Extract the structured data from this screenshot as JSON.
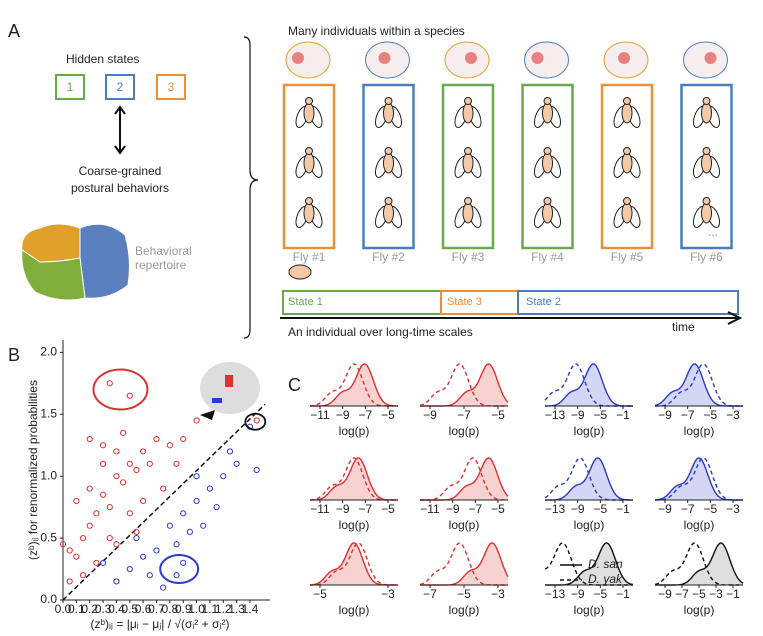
{
  "panel_a": {
    "label": "A",
    "hidden_states_title": "Hidden states",
    "states": [
      "1",
      "2",
      "3"
    ],
    "behaviors": [
      "Coarse-grained",
      "postural behaviors"
    ],
    "repertoire": [
      "Behavioral",
      "repertoire"
    ],
    "species_title": "Many individuals within a species",
    "flies": [
      "Fly #1",
      "Fly #2",
      "Fly #3",
      "Fly #4",
      "Fly #5",
      "Fly #6"
    ],
    "more": "...",
    "timeline": [
      "State 1",
      "State 3",
      "State 2"
    ],
    "individual_title": "An individual over long-time scales",
    "time_label": "time"
  },
  "chart_data": {
    "type": "scatter",
    "label": "B",
    "ylabel": "(zᵇ)ᵢⱼ for renormalized probabilities",
    "xlabel": "(zᵇ)ᵢⱼ = |μᵢ − μⱼ| / √(σᵢ² + σⱼ²)",
    "xlim": [
      0,
      1.55
    ],
    "ylim": [
      0,
      2.1
    ],
    "xticks": [
      {
        "value": 0,
        "label": "0.0"
      },
      {
        "value": 0.1,
        "label": "0.1"
      },
      {
        "value": 0.2,
        "label": "0.2"
      },
      {
        "value": 0.3,
        "label": "0.3"
      },
      {
        "value": 0.4,
        "label": "0.4"
      },
      {
        "value": 0.5,
        "label": "0.5"
      },
      {
        "value": 0.6,
        "label": "0.6"
      },
      {
        "value": 0.7,
        "label": "0.7"
      },
      {
        "value": 0.8,
        "label": "0.8"
      },
      {
        "value": 0.9,
        "label": "0.9"
      },
      {
        "value": 1,
        "label": "1.0"
      },
      {
        "value": 1.1,
        "label": "1.1"
      },
      {
        "value": 1.2,
        "label": "1.2"
      },
      {
        "value": 1.3,
        "label": "1.3"
      },
      {
        "value": 1.4,
        "label": "1.4"
      }
    ],
    "yticks": [
      {
        "value": 0,
        "label": "0.0"
      },
      {
        "value": 0.5,
        "label": "0.5"
      },
      {
        "value": 1,
        "label": "1.0"
      },
      {
        "value": 1.5,
        "label": "1.5"
      },
      {
        "value": 2,
        "label": "2.0"
      }
    ],
    "series": [
      {
        "color": "#e03030",
        "x": [
          0.35,
          0.5,
          0.0,
          0.05,
          0.1,
          0.15,
          0.2,
          0.25,
          0.1,
          0.2,
          0.3,
          0.35,
          0.4,
          0.45,
          0.5,
          0.55,
          0.6,
          0.3,
          0.4,
          0.2,
          0.45,
          0.7,
          0.65,
          0.8,
          0.9,
          1.0,
          0.75,
          0.6,
          0.5,
          0.15,
          0.05,
          0.25,
          0.35,
          1.45,
          0.85,
          0.3,
          0.55,
          0.4
        ],
        "values": [
          1.75,
          1.65,
          0.45,
          0.4,
          0.35,
          0.5,
          0.6,
          0.7,
          0.8,
          0.9,
          0.85,
          0.75,
          1.0,
          0.95,
          1.1,
          1.05,
          1.2,
          1.1,
          1.2,
          1.3,
          1.35,
          1.3,
          1.1,
          1.25,
          1.3,
          1.45,
          0.9,
          0.8,
          0.7,
          0.2,
          0.15,
          0.3,
          0.5,
          1.45,
          1.1,
          1.25,
          0.55,
          0.45
        ]
      },
      {
        "color": "#2a3ad0",
        "x": [
          0.85,
          0.9,
          0.4,
          0.5,
          0.6,
          0.7,
          0.8,
          0.9,
          1.0,
          1.1,
          1.2,
          1.3,
          1.45,
          1.4,
          0.95,
          1.05,
          1.15,
          0.65,
          0.75,
          0.3,
          1.25,
          1.0,
          0.55,
          0.85
        ],
        "values": [
          0.2,
          0.3,
          0.15,
          0.25,
          0.35,
          0.4,
          0.6,
          0.7,
          0.8,
          0.9,
          1.0,
          1.1,
          1.05,
          1.4,
          0.55,
          0.6,
          0.75,
          0.2,
          0.1,
          0.3,
          1.2,
          1.0,
          0.5,
          0.45
        ]
      }
    ]
  },
  "panel_c": {
    "label": "C",
    "xlabel": "log(p)",
    "legend": [
      "D. san",
      "D. yak"
    ],
    "plots": [
      [
        "−11",
        "−9",
        "−7",
        "−5"
      ],
      [
        "−9",
        "−7",
        "−5"
      ],
      [
        "−13",
        "−9",
        "−5",
        "−1"
      ],
      [
        "−9",
        "−7",
        "−5",
        "−3"
      ],
      [
        "−11",
        "−9",
        "−7",
        "−5"
      ],
      [
        "−11",
        "−9",
        "−7",
        "−5"
      ],
      [
        "−13",
        "−9",
        "−5",
        "−1"
      ],
      [
        "−9",
        "−7",
        "−5",
        "−3"
      ],
      [
        "−5",
        "−3"
      ],
      [
        "−7",
        "−5",
        "−3"
      ],
      [
        "−13",
        "−9",
        "−5",
        "−1"
      ],
      [
        "−9",
        "−7",
        "−5",
        "−3",
        "−1"
      ]
    ]
  }
}
